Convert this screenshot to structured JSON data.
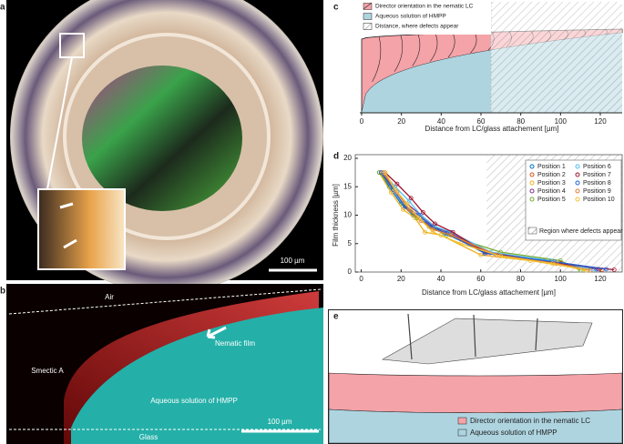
{
  "panels": {
    "a": {
      "label": "a",
      "scale_bar": "100 µm"
    },
    "b": {
      "label": "b",
      "air": "Air",
      "smectic": "Smectic A",
      "nematic": "Nematic film",
      "aqueous": "Aqueous solution of HMPP",
      "scale_bar": "100 µm",
      "glass": "Glass"
    },
    "c": {
      "label": "c"
    },
    "d": {
      "label": "d"
    },
    "e": {
      "label": "e",
      "legend": [
        {
          "name": "Director orientation in the nematic LC",
          "color": "#f4a3a8"
        },
        {
          "name": "Aqueous solution of HMPP",
          "color": "#aed4e0"
        }
      ]
    }
  },
  "chart_data": [
    {
      "type": "schematic",
      "legend": [
        {
          "name": "Director orientation in the nematic LC",
          "color": "#f4a3a8"
        },
        {
          "name": "Aqueous solution of HMPP",
          "color": "#aed4e0"
        },
        {
          "name": "Distance, where defects appear",
          "color": "#999999"
        }
      ],
      "defect_start": 65,
      "xlim": [
        0,
        131
      ],
      "xticks": [
        0,
        20,
        40,
        60,
        80,
        100,
        120
      ],
      "xlabel": "Distance from LC/glass attachement [µm]"
    },
    {
      "type": "line",
      "xlabel": "Distance from LC/glass attachement [µm]",
      "ylabel": "Film thickness [µm]",
      "xlim": [
        -3,
        131
      ],
      "ylim": [
        0,
        20
      ],
      "xticks": [
        0,
        20,
        40,
        60,
        80,
        100,
        120
      ],
      "yticks": [
        0,
        5,
        10,
        15,
        20
      ],
      "defect_region": {
        "name": "Region where defects appear",
        "start": 63
      },
      "series": [
        {
          "name": "Position 1",
          "color": "#0072bd",
          "x": [
            9,
            14,
            20,
            26,
            33,
            42,
            62,
            90,
            118
          ],
          "y": [
            17.5,
            15,
            12,
            10,
            8.5,
            6.8,
            3.5,
            2,
            0.5
          ]
        },
        {
          "name": "Position 2",
          "color": "#d95319",
          "x": [
            10,
            16,
            22,
            28,
            35,
            45,
            64,
            95,
            121
          ],
          "y": [
            17.5,
            14.5,
            11.5,
            9.5,
            8,
            6.5,
            3.2,
            1.8,
            0.4
          ]
        },
        {
          "name": "Position 3",
          "color": "#edb120",
          "x": [
            9,
            15,
            21,
            27,
            32,
            40,
            60,
            85,
            112
          ],
          "y": [
            17.5,
            14,
            11,
            9.5,
            7,
            6.5,
            3,
            2,
            0.5
          ]
        },
        {
          "name": "Position 4",
          "color": "#7e2f8e",
          "x": [
            10,
            17,
            23,
            30,
            36,
            44,
            63,
            92,
            119
          ],
          "y": [
            17.5,
            14.5,
            12,
            10,
            8,
            7,
            3.5,
            2,
            0.5
          ]
        },
        {
          "name": "Position 5",
          "color": "#77ac30",
          "x": [
            9,
            15,
            21,
            28,
            34,
            43,
            70,
            100,
            110
          ],
          "y": [
            17.5,
            15,
            12,
            9.5,
            8,
            6.5,
            3.5,
            2,
            0.3
          ]
        },
        {
          "name": "Position 6",
          "color": "#4dbeee",
          "x": [
            11,
            17,
            24,
            30,
            37,
            45,
            65,
            95,
            116
          ],
          "y": [
            17.5,
            15,
            12.5,
            10,
            8,
            7,
            3.5,
            2,
            0.5
          ]
        },
        {
          "name": "Position 7",
          "color": "#a2142f",
          "x": [
            12,
            18,
            25,
            31,
            37,
            46,
            62,
            100,
            127
          ],
          "y": [
            17.5,
            15.5,
            13,
            10.5,
            8.5,
            7,
            3.5,
            1.5,
            0.4
          ]
        },
        {
          "name": "Position 8",
          "color": "#1f5fd6",
          "x": [
            10,
            16,
            22,
            29,
            35,
            43,
            62,
            97,
            123
          ],
          "y": [
            17.5,
            14.5,
            11.5,
            10,
            8,
            6.8,
            3.3,
            1.8,
            0.5
          ]
        },
        {
          "name": "Position 9",
          "color": "#e07b39",
          "x": [
            11,
            18,
            24,
            30,
            36,
            45,
            68,
            98,
            115
          ],
          "y": [
            17.5,
            14,
            11,
            9,
            7.5,
            6.5,
            3,
            1.5,
            0.3
          ]
        },
        {
          "name": "Position 10",
          "color": "#f2c12e",
          "x": [
            12,
            17,
            23,
            29,
            36,
            50,
            70,
            96,
            113
          ],
          "y": [
            17.5,
            14.5,
            12,
            9.5,
            7,
            5,
            2.8,
            1.5,
            0.3
          ]
        }
      ]
    }
  ]
}
